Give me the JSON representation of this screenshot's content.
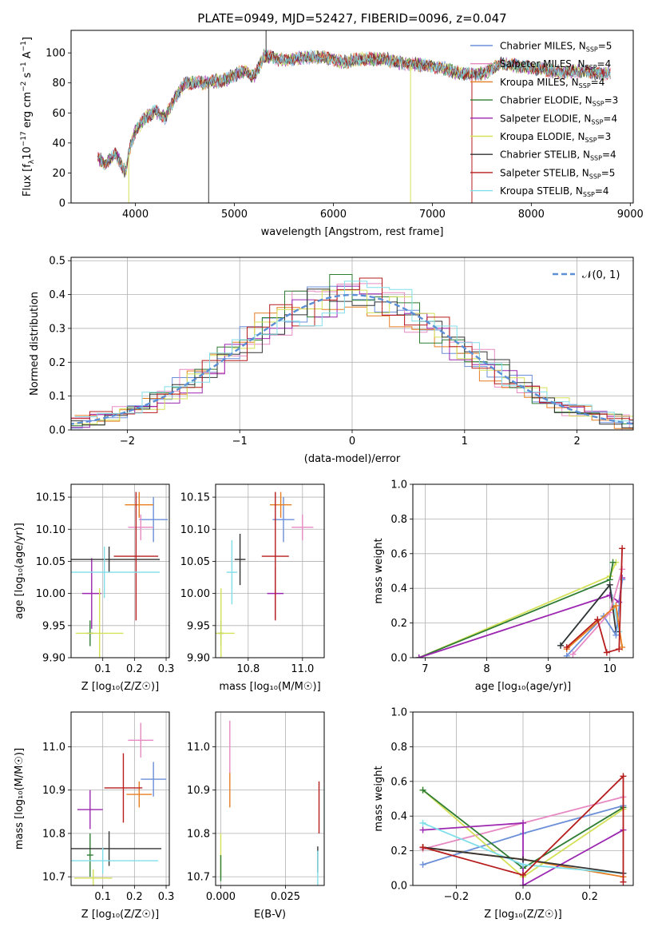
{
  "colors": {
    "chabrier_miles": "#6a8fd8",
    "salpeter_miles": "#e78ac3",
    "kroupa_miles": "#e67e22",
    "chabrier_elodie": "#2e7d32",
    "salpeter_elodie": "#9c27b0",
    "kroupa_elodie": "#d4e157",
    "chabrier_stelib": "#333333",
    "salpeter_stelib": "#b71c1c",
    "kroupa_stelib": "#80deea"
  },
  "legend_spectrum": [
    {
      "pre": "Chabrier MILES, N",
      "sub": "SSP",
      "post": "=5",
      "color": "#6a8fd8"
    },
    {
      "pre": "Salpeter MILES, N",
      "sub": "SSP",
      "post": "=4",
      "color": "#e78ac3"
    },
    {
      "pre": "Kroupa MILES, N",
      "sub": "SSP",
      "post": "=4",
      "color": "#e67e22"
    },
    {
      "pre": "Chabrier ELODIE, N",
      "sub": "SSP",
      "post": "=3",
      "color": "#2e7d32"
    },
    {
      "pre": "Salpeter ELODIE, N",
      "sub": "SSP",
      "post": "=4",
      "color": "#9c27b0"
    },
    {
      "pre": "Kroupa ELODIE, N",
      "sub": "SSP",
      "post": "=3",
      "color": "#d4e157"
    },
    {
      "pre": "Chabrier STELIB, N",
      "sub": "SSP",
      "post": "=4",
      "color": "#333333"
    },
    {
      "pre": "Salpeter STELIB, N",
      "sub": "SSP",
      "post": "=5",
      "color": "#b71c1c"
    },
    {
      "pre": "Kroupa STELIB, N",
      "sub": "SSP",
      "post": "=4",
      "color": "#80deea"
    }
  ],
  "chart_data": [
    {
      "id": "spectrum",
      "type": "line",
      "title": "PLATE=0949, MJD=52427, FIBERID=0096, z=0.047",
      "xlabel": "wavelength [Angstrom, rest frame]",
      "ylabel_parts": [
        "Flux [f",
        "λ",
        "10",
        "−17",
        " erg cm",
        "−2",
        " s",
        "−1",
        " A",
        "−1",
        "]"
      ],
      "xlim": [
        3350,
        9030
      ],
      "ylim": [
        0,
        115
      ],
      "xticks": [
        4000,
        5000,
        6000,
        7000,
        8000,
        9000
      ],
      "yticks": [
        0,
        20,
        40,
        60,
        80,
        100
      ],
      "x": [
        3620,
        3700,
        3800,
        3900,
        3950,
        4000,
        4100,
        4200,
        4300,
        4400,
        4500,
        4700,
        4900,
        5100,
        5200,
        5300,
        5500,
        5700,
        5900,
        6100,
        6300,
        6500,
        6700,
        6900,
        7100,
        7300,
        7500,
        7700,
        7900,
        8100,
        8300,
        8500,
        8700,
        8800
      ],
      "y": [
        30,
        26,
        33,
        20,
        38,
        48,
        57,
        61,
        57,
        70,
        80,
        80,
        82,
        88,
        84,
        98,
        95,
        97,
        97,
        94,
        96,
        96,
        93,
        92,
        90,
        86,
        86,
        93,
        91,
        89,
        87,
        88,
        86,
        87
      ],
      "dips": [
        {
          "x": 3933,
          "y": 0,
          "color": "#d4e157"
        },
        {
          "x": 4740,
          "y": 0,
          "color": "#333333"
        },
        {
          "x": 5320,
          "y": 120,
          "color": "#333333"
        },
        {
          "x": 6780,
          "y": 0,
          "color": "#d4e157"
        },
        {
          "x": 7400,
          "y": 0,
          "color": "#b71c1c"
        }
      ]
    },
    {
      "id": "residuals",
      "type": "histogram",
      "xlabel": "(data-model)/error",
      "ylabel": "Normed distribution",
      "xlim": [
        -2.5,
        2.5
      ],
      "ylim": [
        0,
        0.51
      ],
      "xticks": [
        -2,
        -1,
        0,
        1,
        2
      ],
      "yticks": [
        0.0,
        0.1,
        0.2,
        0.3,
        0.4,
        0.5
      ],
      "grid": true,
      "legend_label": "𝒩(0, 1)",
      "legend_position": "upper right",
      "series_colors": [
        "#6a8fd8",
        "#e78ac3",
        "#e67e22",
        "#2e7d32",
        "#9c27b0",
        "#d4e157",
        "#333333",
        "#b71c1c",
        "#80deea"
      ]
    },
    {
      "id": "age_vs_Z",
      "type": "scatter_errorbar",
      "xlabel": "Z [log₁₀(Z/Z☉)]",
      "ylabel": "age  [log₁₀(age/yr)]",
      "xlim": [
        0.0,
        0.31
      ],
      "ylim": [
        9.9,
        10.17
      ],
      "xticks": [
        0.1,
        0.2,
        0.3
      ],
      "yticks": [
        9.9,
        9.95,
        10.0,
        10.05,
        10.1,
        10.15
      ],
      "grid": true,
      "points": [
        {
          "x": 0.26,
          "y": 10.115,
          "xe": 0.045,
          "ye": 0.035,
          "color": "#6a8fd8"
        },
        {
          "x": 0.22,
          "y": 10.103,
          "xe": 0.04,
          "ye": 0.02,
          "color": "#e78ac3"
        },
        {
          "x": 0.215,
          "y": 10.138,
          "xe": 0.045,
          "ye": 0.02,
          "color": "#e67e22"
        },
        {
          "x": 0.06,
          "y": 9.938,
          "xe": 0.01,
          "ye": 0.02,
          "color": "#2e7d32"
        },
        {
          "x": 0.065,
          "y": 10.0,
          "xe": 0.03,
          "ye": 0.055,
          "color": "#9c27b0"
        },
        {
          "x": 0.09,
          "y": 9.938,
          "xe": 0.075,
          "ye": 0.07,
          "color": "#d4e157"
        },
        {
          "x": 0.12,
          "y": 10.053,
          "xe": 0.16,
          "ye": 0.02,
          "color": "#333333"
        },
        {
          "x": 0.205,
          "y": 10.058,
          "xe": 0.07,
          "ye": 0.1,
          "color": "#b71c1c"
        },
        {
          "x": 0.105,
          "y": 10.033,
          "xe": 0.175,
          "ye": 0.04,
          "color": "#80deea"
        }
      ]
    },
    {
      "id": "age_vs_mass",
      "type": "scatter_errorbar",
      "xlabel": "mass [log₁₀(M/M☉)]",
      "xlim": [
        10.68,
        11.08
      ],
      "ylim": [
        9.9,
        10.17
      ],
      "xticks": [
        10.8,
        11.0
      ],
      "yticks": [
        9.9,
        9.95,
        10.0,
        10.05,
        10.1,
        10.15
      ],
      "grid": true,
      "points": [
        {
          "x": 10.93,
          "y": 10.115,
          "xe": 0.04,
          "ye": 0.035,
          "color": "#6a8fd8"
        },
        {
          "x": 11.0,
          "y": 10.103,
          "xe": 0.04,
          "ye": 0.02,
          "color": "#e78ac3"
        },
        {
          "x": 10.92,
          "y": 10.138,
          "xe": 0.04,
          "ye": 0.02,
          "color": "#e67e22"
        },
        {
          "x": 10.7,
          "y": 9.938,
          "xe": 0.01,
          "ye": 0.02,
          "color": "#2e7d32"
        },
        {
          "x": 10.9,
          "y": 10.0,
          "xe": 0.03,
          "ye": 0.04,
          "color": "#9c27b0"
        },
        {
          "x": 10.7,
          "y": 9.938,
          "xe": 0.05,
          "ye": 0.07,
          "color": "#d4e157"
        },
        {
          "x": 10.77,
          "y": 10.053,
          "xe": 0.02,
          "ye": 0.04,
          "color": "#333333"
        },
        {
          "x": 10.9,
          "y": 10.058,
          "xe": 0.05,
          "ye": 0.1,
          "color": "#b71c1c"
        },
        {
          "x": 10.74,
          "y": 10.033,
          "xe": 0.02,
          "ye": 0.05,
          "color": "#80deea"
        }
      ]
    },
    {
      "id": "mass_weight_vs_age",
      "type": "line",
      "xlabel": "age  [log₁₀(age/yr)]",
      "ylabel": "mass weight",
      "xlim": [
        6.8,
        10.38
      ],
      "ylim": [
        0,
        1.0
      ],
      "xticks": [
        7,
        8,
        9,
        10
      ],
      "yticks": [
        0.0,
        0.2,
        0.4,
        0.6,
        0.8,
        1.0
      ],
      "grid": true,
      "series": [
        {
          "color": "#d4e157",
          "x": [
            6.9,
            10.0,
            10.1
          ],
          "y": [
            0.0,
            0.47,
            0.55
          ]
        },
        {
          "color": "#2e7d32",
          "x": [
            6.9,
            10.0,
            10.05
          ],
          "y": [
            0.0,
            0.45,
            0.55
          ]
        },
        {
          "color": "#9c27b0",
          "x": [
            6.9,
            10.0,
            10.15,
            10.2
          ],
          "y": [
            0.0,
            0.36,
            0.32,
            0.46
          ]
        },
        {
          "color": "#80deea",
          "x": [
            9.2,
            10.0,
            10.15
          ],
          "y": [
            0.07,
            0.42,
            0.15
          ]
        },
        {
          "color": "#333333",
          "x": [
            9.2,
            10.0,
            10.1
          ],
          "y": [
            0.07,
            0.42,
            0.15
          ]
        },
        {
          "color": "#6a8fd8",
          "x": [
            9.3,
            9.9,
            10.1,
            10.2
          ],
          "y": [
            0.01,
            0.24,
            0.13,
            0.45
          ]
        },
        {
          "color": "#e78ac3",
          "x": [
            9.4,
            10.0,
            10.2
          ],
          "y": [
            0.02,
            0.26,
            0.51
          ]
        },
        {
          "color": "#e67e22",
          "x": [
            9.3,
            10.1,
            10.2
          ],
          "y": [
            0.05,
            0.3,
            0.06
          ]
        },
        {
          "color": "#b71c1c",
          "x": [
            9.3,
            9.8,
            9.95,
            10.15,
            10.2
          ],
          "y": [
            0.06,
            0.22,
            0.03,
            0.05,
            0.63
          ]
        }
      ]
    },
    {
      "id": "mass_vs_Z",
      "type": "scatter_errorbar",
      "xlabel": "Z [log₁₀(Z/Z☉)]",
      "ylabel": "mass [log₁₀(M/M☉)]",
      "xlim": [
        0.0,
        0.31
      ],
      "ylim": [
        10.68,
        11.08
      ],
      "xticks": [
        0.1,
        0.2,
        0.3
      ],
      "yticks": [
        10.7,
        10.8,
        10.9,
        11.0
      ],
      "grid": true,
      "points": [
        {
          "x": 0.26,
          "y": 10.925,
          "xe": 0.04,
          "ye": 0.04,
          "color": "#6a8fd8"
        },
        {
          "x": 0.22,
          "y": 11.015,
          "xe": 0.04,
          "ye": 0.04,
          "color": "#e78ac3"
        },
        {
          "x": 0.215,
          "y": 10.89,
          "xe": 0.04,
          "ye": 0.03,
          "color": "#e67e22"
        },
        {
          "x": 0.06,
          "y": 10.75,
          "xe": 0.01,
          "ye": 0.05,
          "color": "#2e7d32"
        },
        {
          "x": 0.06,
          "y": 10.855,
          "xe": 0.04,
          "ye": 0.045,
          "color": "#9c27b0"
        },
        {
          "x": 0.07,
          "y": 10.697,
          "xe": 0.06,
          "ye": 0.02,
          "color": "#d4e157"
        },
        {
          "x": 0.12,
          "y": 10.765,
          "xe": 0.165,
          "ye": 0.04,
          "color": "#333333"
        },
        {
          "x": 0.165,
          "y": 10.905,
          "xe": 0.06,
          "ye": 0.08,
          "color": "#b71c1c"
        },
        {
          "x": 0.1,
          "y": 10.737,
          "xe": 0.175,
          "ye": 0.03,
          "color": "#80deea"
        }
      ]
    },
    {
      "id": "mass_vs_ebv",
      "type": "scatter_errorbar",
      "xlabel": "E(B-V)",
      "xlim": [
        -0.002,
        0.04
      ],
      "ylim": [
        10.68,
        11.08
      ],
      "xticks": [
        0.0,
        0.025
      ],
      "xtick_labels": [
        "0.000",
        "0.025"
      ],
      "yticks": [
        10.7,
        10.8,
        10.9,
        11.0
      ],
      "grid": true,
      "points": [
        {
          "x": 0.0035,
          "y": 11.0,
          "xe": 0.0,
          "ye": 0.06,
          "color": "#e78ac3"
        },
        {
          "x": 0.0035,
          "y": 10.9,
          "xe": 0.0,
          "ye": 0.04,
          "color": "#e67e22"
        },
        {
          "x": 0.0,
          "y": 10.75,
          "xe": 0.0,
          "ye": 0.05,
          "color": "#d4e157"
        },
        {
          "x": 0.0,
          "y": 10.72,
          "xe": 0.0,
          "ye": 0.03,
          "color": "#2e7d32"
        },
        {
          "x": 0.038,
          "y": 10.86,
          "xe": 0.0,
          "ye": 0.06,
          "color": "#b71c1c"
        },
        {
          "x": 0.0375,
          "y": 10.74,
          "xe": 0.0,
          "ye": 0.03,
          "color": "#333333"
        },
        {
          "x": 0.0375,
          "y": 10.72,
          "xe": 0.0,
          "ye": 0.04,
          "color": "#80deea"
        }
      ]
    },
    {
      "id": "mass_weight_vs_Z",
      "type": "line",
      "xlabel": "Z [log₁₀(Z/Z☉)]",
      "ylabel": "mass weight",
      "xlim": [
        -0.33,
        0.33
      ],
      "ylim": [
        0,
        1.0
      ],
      "xticks": [
        -0.2,
        0.0,
        0.2
      ],
      "yticks": [
        0.0,
        0.2,
        0.4,
        0.6,
        0.8,
        1.0
      ],
      "grid": true,
      "series": [
        {
          "color": "#e78ac3",
          "x": [
            -0.3,
            0.3
          ],
          "y": [
            0.21,
            0.51
          ]
        },
        {
          "color": "#6a8fd8",
          "x": [
            -0.3,
            0.0,
            0.3
          ],
          "y": [
            0.12,
            0.3,
            0.46
          ]
        },
        {
          "color": "#e67e22",
          "x": [
            -0.3,
            0.0,
            0.3
          ],
          "y": [
            0.22,
            0.15,
            0.05
          ]
        },
        {
          "color": "#d4e157",
          "x": [
            -0.3,
            0.0,
            0.3
          ],
          "y": [
            0.55,
            0.05,
            0.44
          ]
        },
        {
          "color": "#2e7d32",
          "x": [
            -0.3,
            0.0,
            0.3
          ],
          "y": [
            0.55,
            0.1,
            0.45
          ]
        },
        {
          "color": "#9c27b0",
          "x": [
            -0.3,
            0.0,
            0.0,
            0.3
          ],
          "y": [
            0.32,
            0.36,
            0.0,
            0.32
          ]
        },
        {
          "color": "#80deea",
          "x": [
            -0.3,
            0.0,
            0.3
          ],
          "y": [
            0.36,
            0.12,
            0.07
          ]
        },
        {
          "color": "#333333",
          "x": [
            -0.3,
            0.0,
            0.3
          ],
          "y": [
            0.22,
            0.15,
            0.07
          ]
        },
        {
          "color": "#b71c1c",
          "x": [
            -0.3,
            0.0,
            0.3,
            0.3
          ],
          "y": [
            0.22,
            0.06,
            0.63,
            0.02
          ]
        }
      ]
    }
  ]
}
